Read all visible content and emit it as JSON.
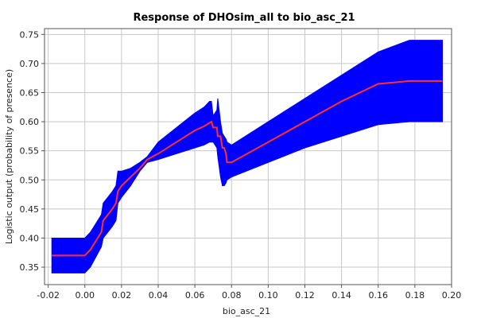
{
  "chart_data": {
    "type": "line",
    "title": "Response of DHOsim_all to bio_asc_21",
    "xlabel": "bio_asc_21",
    "ylabel": "Logistic output (probability of presence)",
    "xlim": [
      -0.022,
      0.2
    ],
    "ylim": [
      0.32,
      0.76
    ],
    "x_ticks": [
      "-0.02",
      "0.00",
      "0.02",
      "0.04",
      "0.06",
      "0.08",
      "0.10",
      "0.12",
      "0.14",
      "0.16",
      "0.18",
      "0.20"
    ],
    "y_ticks": [
      "0.35",
      "0.40",
      "0.45",
      "0.50",
      "0.55",
      "0.60",
      "0.65",
      "0.70",
      "0.75"
    ],
    "grid": true,
    "colors": {
      "band": "#0000ff",
      "mean": "#ff3030",
      "grid": "#c8c8c8",
      "axis": "#555555"
    },
    "series": [
      {
        "style": "line",
        "x": [
          -0.018,
          0.0,
          0.003,
          0.009,
          0.01,
          0.015,
          0.017,
          0.018,
          0.02,
          0.025,
          0.03,
          0.034,
          0.04,
          0.05,
          0.06,
          0.065,
          0.068,
          0.069,
          0.07,
          0.072,
          0.0725,
          0.074,
          0.075,
          0.076,
          0.077,
          0.0775,
          0.08,
          0.1,
          0.12,
          0.14,
          0.16,
          0.177,
          0.195
        ],
        "y": [
          0.37,
          0.37,
          0.38,
          0.41,
          0.43,
          0.45,
          0.46,
          0.48,
          0.49,
          0.505,
          0.52,
          0.535,
          0.545,
          0.565,
          0.585,
          0.592,
          0.598,
          0.6,
          0.59,
          0.59,
          0.575,
          0.575,
          0.555,
          0.555,
          0.545,
          0.53,
          0.53,
          0.565,
          0.6,
          0.635,
          0.665,
          0.67,
          0.67
        ]
      },
      {
        "style": "band",
        "x": [
          -0.018,
          0.0,
          0.003,
          0.009,
          0.01,
          0.015,
          0.017,
          0.018,
          0.02,
          0.025,
          0.03,
          0.034,
          0.04,
          0.05,
          0.06,
          0.065,
          0.068,
          0.069,
          0.07,
          0.072,
          0.0725,
          0.074,
          0.075,
          0.076,
          0.077,
          0.0775,
          0.08,
          0.1,
          0.12,
          0.14,
          0.16,
          0.177,
          0.195
        ],
        "upper": [
          0.4,
          0.4,
          0.41,
          0.44,
          0.46,
          0.48,
          0.49,
          0.515,
          0.515,
          0.52,
          0.53,
          0.54,
          0.565,
          0.59,
          0.615,
          0.625,
          0.635,
          0.635,
          0.61,
          0.62,
          0.64,
          0.6,
          0.58,
          0.575,
          0.57,
          0.565,
          0.56,
          0.6,
          0.64,
          0.68,
          0.72,
          0.74,
          0.74
        ],
        "lower": [
          0.34,
          0.34,
          0.35,
          0.385,
          0.4,
          0.42,
          0.43,
          0.46,
          0.47,
          0.49,
          0.515,
          0.53,
          0.535,
          0.545,
          0.555,
          0.56,
          0.565,
          0.565,
          0.565,
          0.555,
          0.54,
          0.505,
          0.49,
          0.49,
          0.495,
          0.5,
          0.505,
          0.53,
          0.555,
          0.575,
          0.595,
          0.6,
          0.6
        ]
      }
    ]
  }
}
